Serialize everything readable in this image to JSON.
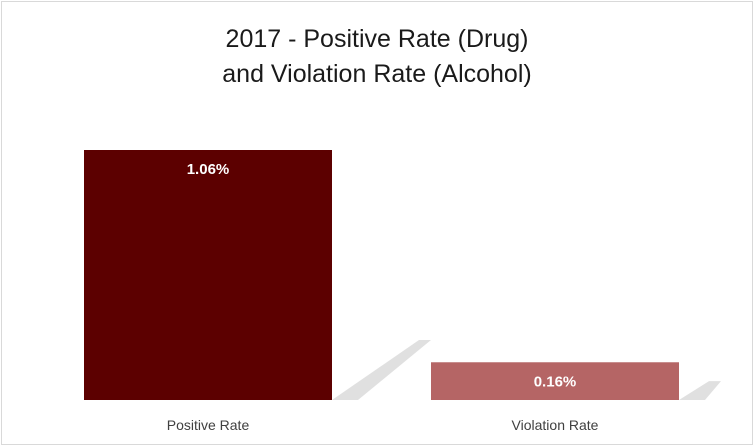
{
  "chart_data": {
    "type": "bar",
    "title_lines": [
      "2017 - Positive Rate (Drug)",
      "and Violation Rate (Alcohol)"
    ],
    "categories": [
      "Positive Rate",
      "Violation Rate"
    ],
    "values": [
      1.06,
      0.16
    ],
    "value_labels": [
      "1.06%",
      "0.16%"
    ],
    "colors": [
      "#5c0000",
      "#b56565"
    ],
    "ylim": [
      0,
      1.06
    ],
    "grid": false,
    "legend": "none",
    "shadow": true
  }
}
